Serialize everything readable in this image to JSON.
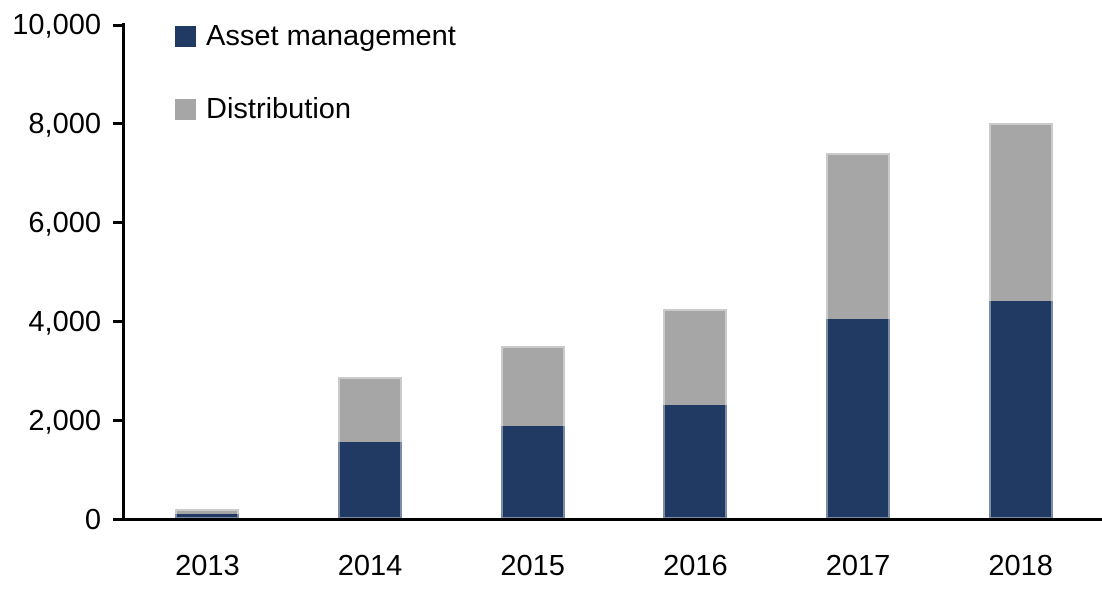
{
  "chart_data": {
    "type": "bar",
    "stacked": true,
    "title": "",
    "xlabel": "",
    "ylabel": "",
    "categories": [
      "2013",
      "2014",
      "2015",
      "2016",
      "2017",
      "2018"
    ],
    "series": [
      {
        "name": "Asset management",
        "color": "#203A64",
        "values": [
          100,
          1550,
          1880,
          2300,
          4040,
          4410
        ]
      },
      {
        "name": "Distribution",
        "color": "#A6A6A6",
        "values": [
          100,
          1320,
          1620,
          1950,
          3360,
          3590
        ]
      }
    ],
    "totals": [
      200,
      2870,
      3500,
      4250,
      7400,
      8000
    ],
    "ylim": [
      0,
      10000
    ],
    "yticks": [
      0,
      2000,
      4000,
      6000,
      8000,
      10000
    ],
    "ytick_labels": [
      "0",
      "2,000",
      "4,000",
      "6,000",
      "8,000",
      "10,000"
    ],
    "grid": false,
    "legend_position": "top-left",
    "colors": {
      "axis": "#000000",
      "text": "#000000",
      "background": "#FFFFFF"
    }
  }
}
